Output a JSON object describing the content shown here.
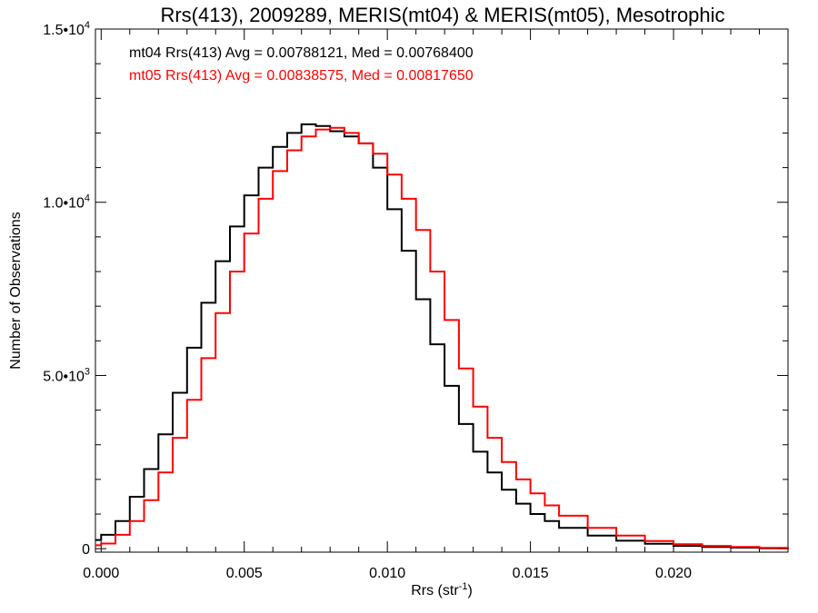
{
  "chart_data": {
    "type": "line",
    "title": "Rrs(413), 2009289, MERIS(mt04) & MERIS(mt05), Mesotrophic",
    "xlabel": "Rrs (str",
    "xlabel_sup": "-1",
    "xlabel_end": ")",
    "ylabel": "Number of Observations",
    "xlim": [
      -0.0002,
      0.024
    ],
    "ylim": [
      -100,
      15000
    ],
    "x_ticks": [
      {
        "value": 0.0,
        "label": "0.000"
      },
      {
        "value": 0.005,
        "label": "0.005"
      },
      {
        "value": 0.01,
        "label": "0.010"
      },
      {
        "value": 0.015,
        "label": "0.015"
      },
      {
        "value": 0.02,
        "label": "0.020"
      }
    ],
    "y_ticks": [
      {
        "value": 0,
        "base": "0",
        "sup": ""
      },
      {
        "value": 5000,
        "base": "5.0•10",
        "sup": "3"
      },
      {
        "value": 10000,
        "base": "1.0•10",
        "sup": "4"
      },
      {
        "value": 15000,
        "base": "1.5•10",
        "sup": "4"
      }
    ],
    "grid": false,
    "legend_position": "top-left",
    "series": [
      {
        "name": "mt04",
        "color": "#000000",
        "legend": "mt04 Rrs(413) Avg = 0.00788121, Med = 0.00768400",
        "x": [
          -0.0002,
          0.0,
          0.0005,
          0.001,
          0.0015,
          0.002,
          0.0025,
          0.003,
          0.0035,
          0.004,
          0.0045,
          0.005,
          0.0055,
          0.006,
          0.0065,
          0.007,
          0.0075,
          0.008,
          0.0085,
          0.009,
          0.0095,
          0.01,
          0.0105,
          0.011,
          0.0115,
          0.012,
          0.0125,
          0.013,
          0.0135,
          0.014,
          0.0145,
          0.015,
          0.0155,
          0.016,
          0.017,
          0.018,
          0.019,
          0.02,
          0.021,
          0.022,
          0.023,
          0.024
        ],
        "y": [
          250,
          400,
          800,
          1500,
          2300,
          3300,
          4500,
          5800,
          7100,
          8300,
          9300,
          10200,
          11000,
          11600,
          12000,
          12250,
          12200,
          12050,
          11900,
          11700,
          11000,
          9800,
          8600,
          7200,
          5900,
          4700,
          3600,
          2800,
          2200,
          1700,
          1300,
          1000,
          800,
          600,
          380,
          230,
          140,
          80,
          50,
          30,
          10,
          5
        ]
      },
      {
        "name": "mt05",
        "color": "#ff0000",
        "legend": "mt05 Rrs(413) Avg = 0.00838575, Med = 0.00817650",
        "x": [
          -0.0002,
          0.0,
          0.0005,
          0.001,
          0.0015,
          0.002,
          0.0025,
          0.003,
          0.0035,
          0.004,
          0.0045,
          0.005,
          0.0055,
          0.006,
          0.0065,
          0.007,
          0.0075,
          0.008,
          0.0085,
          0.009,
          0.0095,
          0.01,
          0.0105,
          0.011,
          0.0115,
          0.012,
          0.0125,
          0.013,
          0.0135,
          0.014,
          0.0145,
          0.015,
          0.0155,
          0.016,
          0.017,
          0.018,
          0.019,
          0.02,
          0.021,
          0.022,
          0.023,
          0.024
        ],
        "y": [
          100,
          150,
          400,
          800,
          1400,
          2200,
          3200,
          4300,
          5500,
          6800,
          8000,
          9100,
          10100,
          10900,
          11500,
          11900,
          12100,
          12150,
          12000,
          11700,
          11400,
          10800,
          10100,
          9200,
          8000,
          6600,
          5200,
          4100,
          3200,
          2500,
          2000,
          1600,
          1250,
          950,
          600,
          380,
          220,
          130,
          80,
          50,
          25,
          10
        ]
      }
    ]
  }
}
